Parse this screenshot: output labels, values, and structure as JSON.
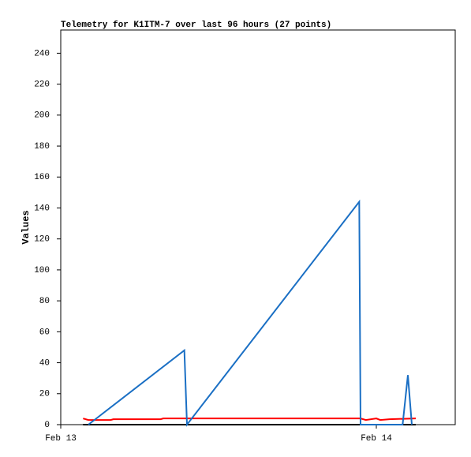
{
  "chart_data": {
    "type": "line",
    "title": "Telemetry for K1ITM-7 over last 96 hours (27 points)",
    "y_label": "Values",
    "xlim": [
      0,
      30
    ],
    "xticks": [
      {
        "value": 0,
        "label": "Feb 13"
      },
      {
        "value": 24,
        "label": "Feb 14"
      }
    ],
    "ylim": [
      0,
      255
    ],
    "yticks": [
      0,
      20,
      40,
      60,
      80,
      100,
      120,
      140,
      160,
      180,
      200,
      220,
      240
    ],
    "series": [
      {
        "color": "#000000",
        "x": [
          1.7,
          27.0
        ],
        "values": [
          0,
          0
        ]
      },
      {
        "color": "#ff0000",
        "x": [
          1.7,
          2.1,
          3.8,
          4.0,
          7.6,
          7.8,
          22.8,
          23.2,
          24.0,
          24.3,
          25.0,
          27.0
        ],
        "values": [
          4,
          3,
          3,
          3.5,
          3.5,
          4,
          4,
          3,
          4,
          3,
          3.5,
          4
        ]
      },
      {
        "color": "#1a6fc4",
        "x": [
          2.1,
          9.4,
          9.6,
          22.7,
          22.8,
          26.0,
          26.4,
          26.7
        ],
        "values": [
          0,
          48,
          0,
          144,
          0,
          0,
          32,
          0
        ]
      }
    ]
  }
}
